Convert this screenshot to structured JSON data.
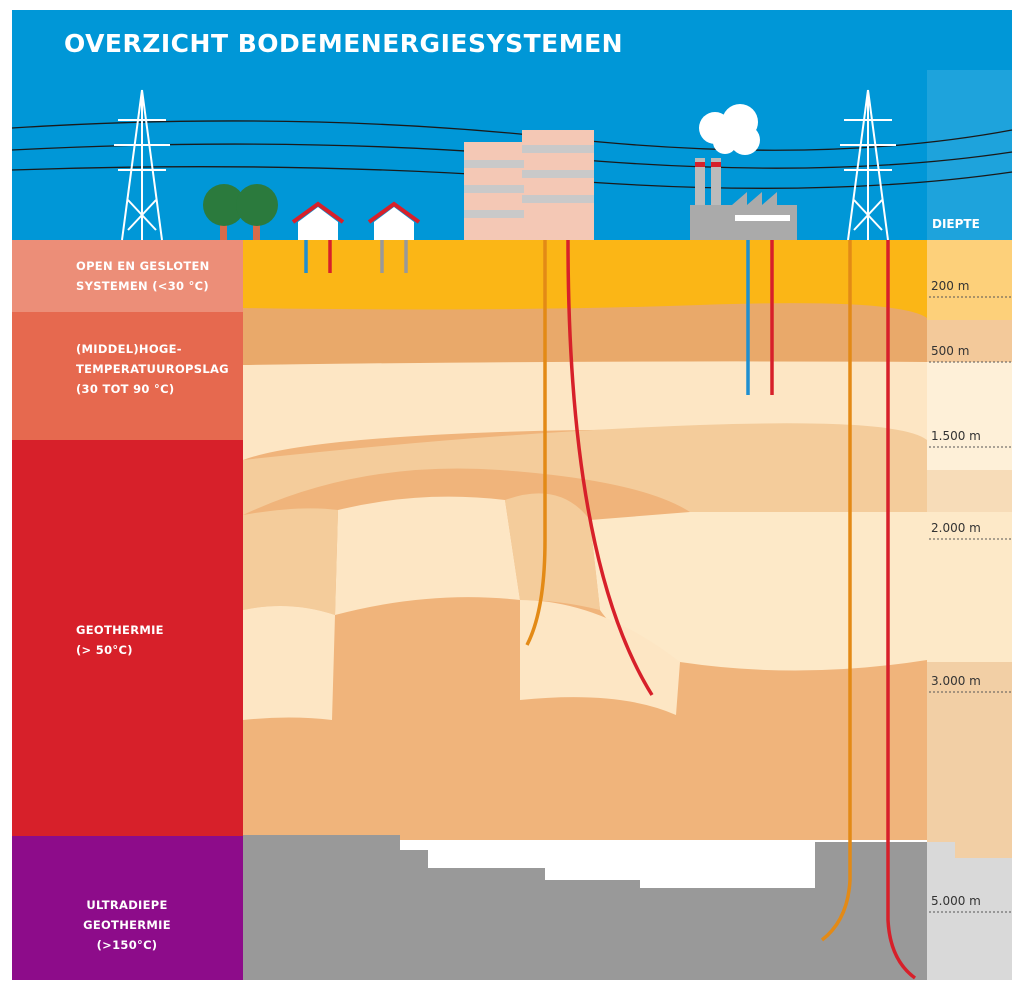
{
  "title": "OVERZICHT BODEMENERGIESYSTEMEN",
  "depth_header": "DIEPTE",
  "depths": [
    "200 m",
    "500 m",
    "1.500 m",
    "2.000 m",
    "3.000 m",
    "5.000 m"
  ],
  "zones": [
    {
      "lines": [
        "OPEN EN GESLOTEN",
        "SYSTEMEN (<30 °C)"
      ]
    },
    {
      "lines": [
        "(MIDDEL)HOGE-",
        "TEMPERATUUROPSLAG",
        "(30 TOT 90 °C)"
      ]
    },
    {
      "lines": [
        "GEOTHERMIE",
        "(> 50°C)"
      ]
    },
    {
      "lines": [
        "ULTRADIEPE",
        "GEOTHERMIE",
        "(>150°C)"
      ]
    }
  ]
}
